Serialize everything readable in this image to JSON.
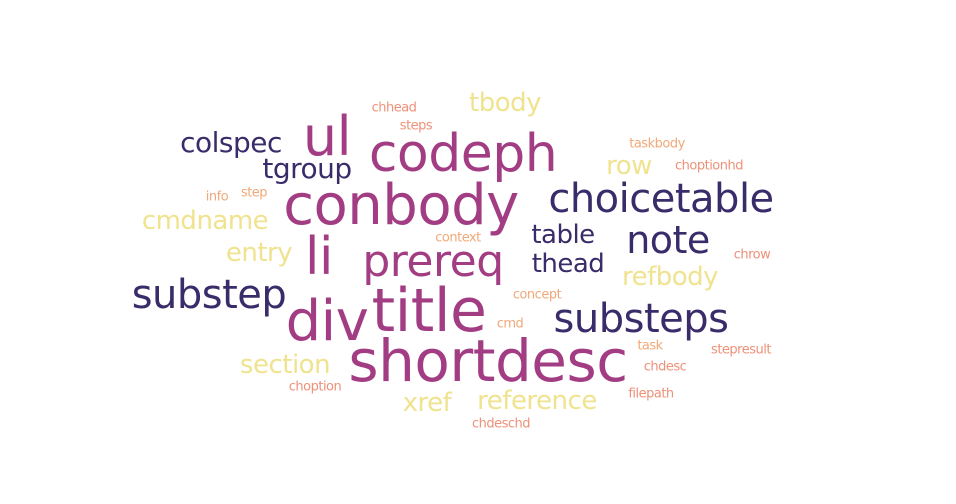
{
  "palette": {
    "purple": "#a23d84",
    "navy": "#3a2c6a",
    "yellow": "#efe38f",
    "salmon": "#ef9078",
    "peach": "#f1a879"
  },
  "words": [
    {
      "text": "shortdesc",
      "color": "purple"
    },
    {
      "text": "title",
      "color": "purple"
    },
    {
      "text": "div",
      "color": "purple"
    },
    {
      "text": "conbody",
      "color": "purple"
    },
    {
      "text": "codeph",
      "color": "purple"
    },
    {
      "text": "ul",
      "color": "purple"
    },
    {
      "text": "li",
      "color": "purple"
    },
    {
      "text": "prereq",
      "color": "purple"
    },
    {
      "text": "choicetable",
      "color": "navy"
    },
    {
      "text": "substeps",
      "color": "navy"
    },
    {
      "text": "substep",
      "color": "navy"
    },
    {
      "text": "note",
      "color": "navy"
    },
    {
      "text": "colspec",
      "color": "navy"
    },
    {
      "text": "tgroup",
      "color": "navy"
    },
    {
      "text": "table",
      "color": "navy"
    },
    {
      "text": "thead",
      "color": "navy"
    },
    {
      "text": "tbody",
      "color": "yellow"
    },
    {
      "text": "row",
      "color": "yellow"
    },
    {
      "text": "cmdname",
      "color": "yellow"
    },
    {
      "text": "entry",
      "color": "yellow"
    },
    {
      "text": "refbody",
      "color": "yellow"
    },
    {
      "text": "section",
      "color": "yellow"
    },
    {
      "text": "reference",
      "color": "yellow"
    },
    {
      "text": "xref",
      "color": "yellow"
    },
    {
      "text": "chhead",
      "color": "salmon"
    },
    {
      "text": "steps",
      "color": "salmon"
    },
    {
      "text": "taskbody",
      "color": "peach"
    },
    {
      "text": "choptionhd",
      "color": "salmon"
    },
    {
      "text": "info",
      "color": "peach"
    },
    {
      "text": "step",
      "color": "peach"
    },
    {
      "text": "context",
      "color": "peach"
    },
    {
      "text": "chrow",
      "color": "salmon"
    },
    {
      "text": "concept",
      "color": "peach"
    },
    {
      "text": "cmd",
      "color": "peach"
    },
    {
      "text": "task",
      "color": "peach"
    },
    {
      "text": "stepresult",
      "color": "salmon"
    },
    {
      "text": "chdesc",
      "color": "salmon"
    },
    {
      "text": "choption",
      "color": "salmon"
    },
    {
      "text": "filepath",
      "color": "salmon"
    },
    {
      "text": "chdeschd",
      "color": "salmon"
    }
  ]
}
